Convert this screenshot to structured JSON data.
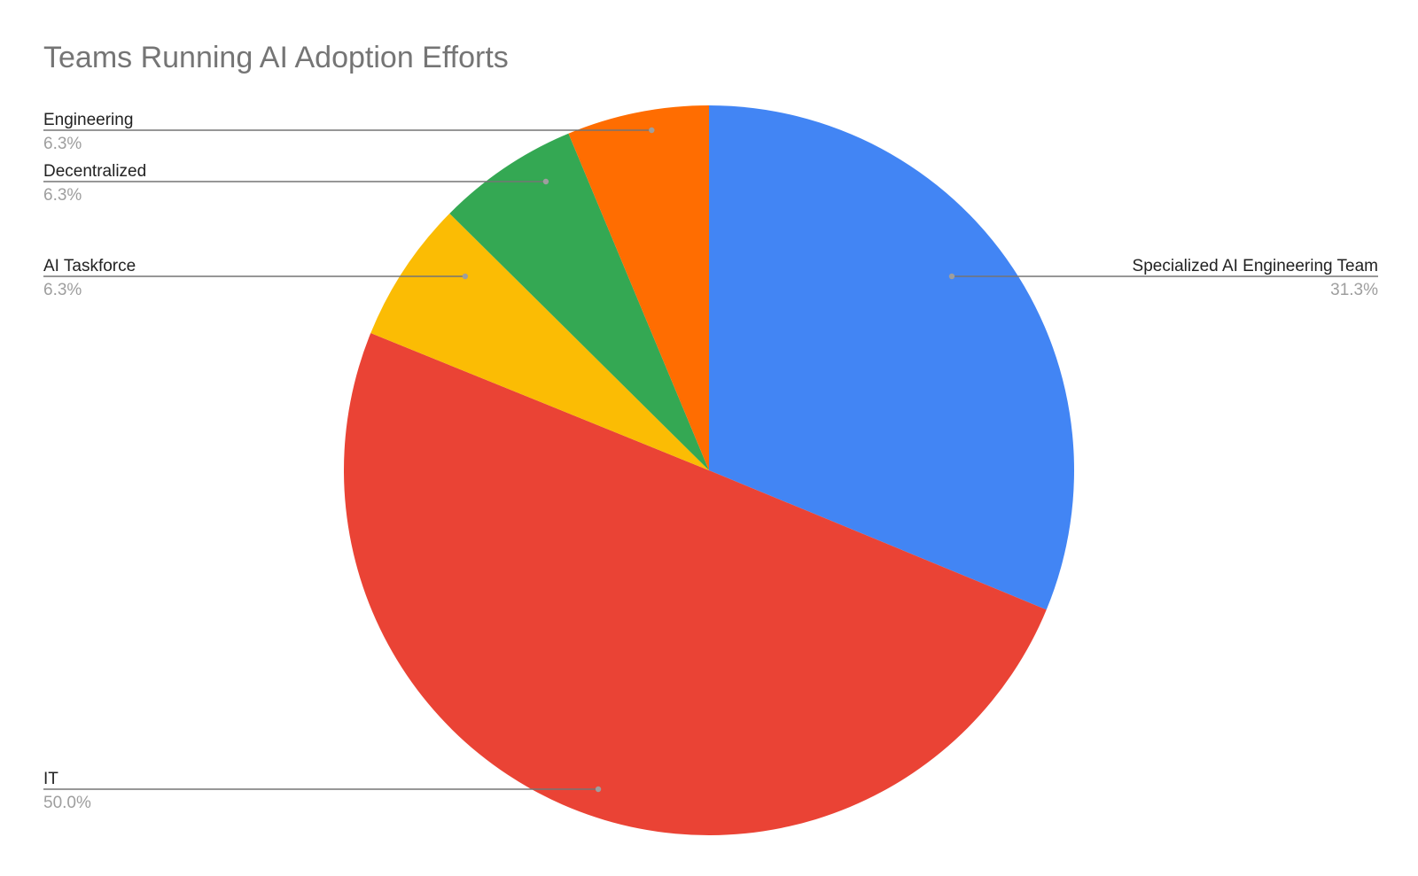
{
  "chart_data": {
    "type": "pie",
    "title": "Teams Running AI Adoption Efforts",
    "slices": [
      {
        "label": "Specialized AI Engineering Team",
        "value": 31.3,
        "percent_label": "31.3%",
        "color": "#4285f4"
      },
      {
        "label": "IT",
        "value": 50.0,
        "percent_label": "50.0%",
        "color": "#ea4335"
      },
      {
        "label": "AI Taskforce",
        "value": 6.3,
        "percent_label": "6.3%",
        "color": "#fbbc04"
      },
      {
        "label": "Decentralized",
        "value": 6.3,
        "percent_label": "6.3%",
        "color": "#34a853"
      },
      {
        "label": "Engineering",
        "value": 6.3,
        "percent_label": "6.3%",
        "color": "#ff6d01"
      }
    ],
    "start_angle": "top",
    "direction": "clockwise",
    "labels": "outside-with-leader-lines",
    "legend": "none"
  }
}
